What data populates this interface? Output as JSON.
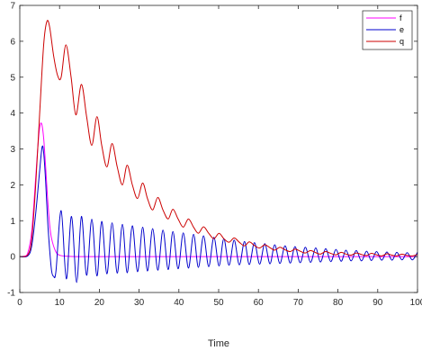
{
  "chart_data": {
    "type": "line",
    "title": "",
    "xlabel": "Time",
    "ylabel": "",
    "xlim": [
      0,
      100
    ],
    "ylim": [
      -1,
      7
    ],
    "xticks": [
      0,
      10,
      20,
      30,
      40,
      50,
      60,
      70,
      80,
      90,
      100
    ],
    "yticks": [
      -1,
      0,
      1,
      2,
      3,
      4,
      5,
      6,
      7
    ],
    "grid": false,
    "legend_position": "top-right",
    "series": [
      {
        "name": "f",
        "color": "#ff00ff",
        "x": [
          0,
          1,
          2,
          3,
          4,
          4.5,
          5,
          5.5,
          6,
          6.5,
          7,
          7.5,
          8,
          9,
          10,
          12,
          15,
          20,
          40,
          60,
          80,
          100
        ],
        "y": [
          0,
          0.01,
          0.1,
          0.7,
          2.2,
          3.0,
          3.6,
          3.7,
          3.3,
          2.5,
          1.6,
          0.9,
          0.5,
          0.15,
          0.04,
          0.01,
          0,
          0,
          0,
          0,
          0,
          0
        ]
      },
      {
        "name": "e",
        "color": "#0000cc",
        "x": [
          0,
          2,
          3,
          4,
          5,
          5.6,
          6,
          6.5,
          7,
          7.5,
          8,
          8.5,
          9.1,
          10.4,
          11.7,
          13.0,
          14.3,
          15.5,
          16.8,
          18.1,
          19.4,
          20.6,
          21.9,
          23.2,
          24.5,
          25.8,
          27.0,
          28.3,
          29.6,
          30.9,
          32.1,
          33.4,
          34.7,
          36.0,
          37.3,
          38.5,
          39.8,
          41.1,
          42.4,
          43.7,
          44.9,
          46.2,
          47.5,
          48.8,
          50.1,
          51.3,
          52.6,
          53.9,
          55.2,
          56.5,
          57.7,
          59.0,
          60.3,
          61.6,
          62.9,
          64.1,
          65.4,
          66.7,
          68.0,
          69.2,
          70.5,
          71.8,
          73.1,
          74.4,
          75.6,
          76.9,
          78.2,
          79.5,
          80.8,
          82.0,
          83.3,
          84.6,
          85.9,
          87.2,
          88.4,
          89.7,
          91.0,
          92.3,
          93.6,
          94.8,
          96.1,
          97.4,
          98.7,
          100
        ],
        "y": [
          0,
          0.02,
          0.3,
          1.2,
          2.4,
          3.05,
          2.9,
          2.1,
          1.0,
          0.2,
          -0.4,
          -0.55,
          -0.4,
          1.28,
          -0.62,
          1.12,
          -0.72,
          1.12,
          -0.52,
          1.04,
          -0.54,
          0.98,
          -0.48,
          0.94,
          -0.46,
          0.9,
          -0.45,
          0.86,
          -0.42,
          0.82,
          -0.4,
          0.78,
          -0.38,
          0.74,
          -0.36,
          0.7,
          -0.34,
          0.66,
          -0.32,
          0.62,
          -0.3,
          0.58,
          -0.28,
          0.54,
          -0.26,
          0.5,
          -0.24,
          0.46,
          -0.23,
          0.42,
          -0.22,
          0.39,
          -0.21,
          0.36,
          -0.2,
          0.33,
          -0.19,
          0.3,
          -0.18,
          0.28,
          -0.17,
          0.26,
          -0.16,
          0.24,
          -0.15,
          0.22,
          -0.14,
          0.2,
          -0.13,
          0.18,
          -0.12,
          0.17,
          -0.12,
          0.15,
          -0.11,
          0.14,
          -0.1,
          0.13,
          -0.1,
          0.12,
          -0.09,
          0.11,
          -0.09,
          0.12
        ]
      },
      {
        "name": "q",
        "color": "#cc0000",
        "x": [
          0,
          2,
          3,
          4,
          5,
          6,
          6.8,
          7.5,
          8.5,
          9.5,
          10.4,
          11.6,
          12.9,
          14.1,
          15.5,
          16.8,
          18.1,
          19.4,
          20.6,
          21.9,
          23.2,
          24.5,
          25.8,
          27.0,
          28.3,
          29.6,
          30.9,
          32.1,
          33.4,
          34.7,
          36.0,
          37.3,
          38.5,
          39.8,
          41.1,
          42.4,
          43.7,
          44.9,
          46.2,
          47.5,
          48.8,
          50.1,
          51.3,
          52.6,
          53.9,
          55.2,
          56.5,
          57.7,
          59.0,
          60.3,
          61.6,
          62.9,
          64.1,
          65.4,
          66.7,
          68.0,
          69.2,
          70.5,
          71.8,
          73.1,
          74.4,
          75.6,
          76.9,
          78.2,
          79.5,
          80.8,
          82.0,
          83.3,
          84.6,
          85.9,
          87.2,
          88.4,
          89.7,
          91.0,
          92.3,
          93.6,
          94.8,
          96.1,
          97.4,
          98.7,
          100
        ],
        "y": [
          0,
          0.05,
          0.5,
          2.0,
          4.0,
          5.9,
          6.55,
          6.4,
          5.6,
          5.05,
          5.0,
          5.9,
          5.0,
          3.95,
          4.8,
          3.9,
          3.1,
          3.9,
          3.1,
          2.5,
          3.15,
          2.5,
          2.0,
          2.55,
          2.0,
          1.62,
          2.05,
          1.62,
          1.3,
          1.65,
          1.3,
          1.05,
          1.32,
          1.05,
          0.82,
          1.05,
          0.82,
          0.65,
          0.83,
          0.65,
          0.5,
          0.65,
          0.5,
          0.4,
          0.52,
          0.4,
          0.3,
          0.41,
          0.31,
          0.24,
          0.33,
          0.25,
          0.18,
          0.26,
          0.19,
          0.14,
          0.21,
          0.15,
          0.1,
          0.17,
          0.11,
          0.07,
          0.14,
          0.09,
          0.05,
          0.12,
          0.07,
          0.04,
          0.1,
          0.06,
          0.03,
          0.09,
          0.05,
          0.02,
          0.08,
          0.04,
          0.02,
          0.07,
          0.03,
          0.02,
          0.06
        ]
      }
    ]
  }
}
